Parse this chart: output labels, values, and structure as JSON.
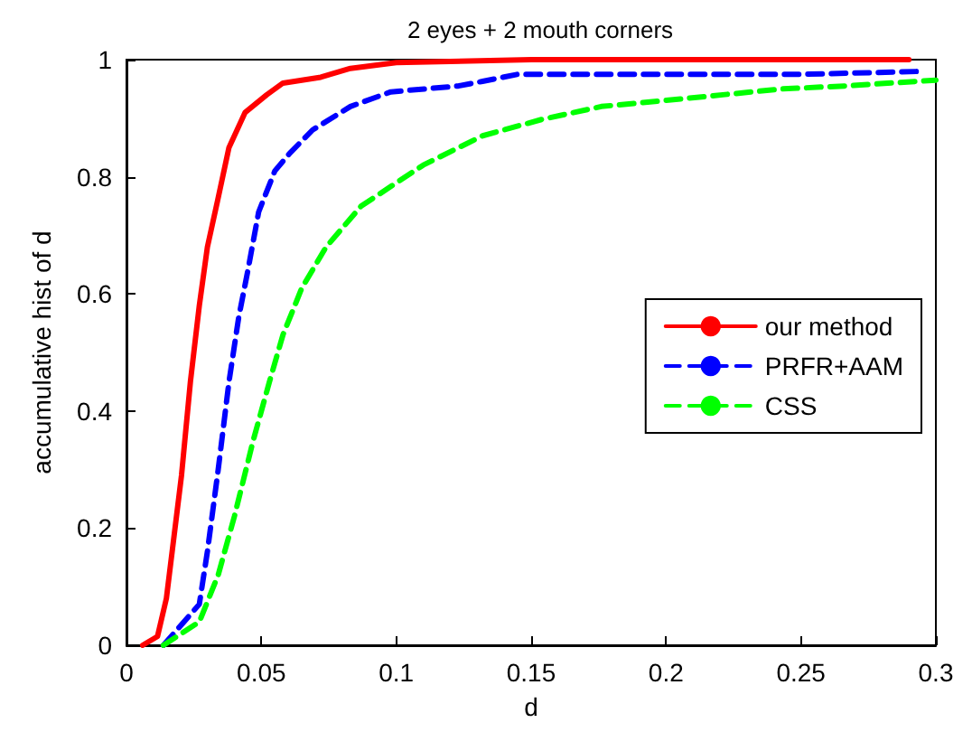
{
  "chart_data": {
    "type": "line",
    "title": "2 eyes + 2 mouth corners",
    "xlabel": "d",
    "ylabel": "accumulative hist of d",
    "xlim": [
      0,
      0.3
    ],
    "xticks": [
      0,
      0.05,
      0.1,
      0.15,
      0.2,
      0.25,
      0.3
    ],
    "ylim": [
      0,
      1
    ],
    "yticks": [
      0,
      0.2,
      0.4,
      0.6,
      0.8,
      1
    ],
    "grid": false,
    "legend": "right",
    "marker": "none",
    "series": [
      {
        "name": "our method",
        "color": "#ff0000",
        "line_style": "solid",
        "x": [
          0.006,
          0.0115,
          0.0148,
          0.0204,
          0.0237,
          0.027,
          0.03,
          0.0338,
          0.038,
          0.044,
          0.052,
          0.058,
          0.072,
          0.083,
          0.1,
          0.15,
          0.2,
          0.25,
          0.29
        ],
        "values": [
          0,
          0.015,
          0.08,
          0.29,
          0.45,
          0.58,
          0.68,
          0.76,
          0.85,
          0.91,
          0.94,
          0.96,
          0.97,
          0.985,
          0.995,
          1,
          1,
          1,
          1
        ]
      },
      {
        "name": "PRFR+AAM",
        "color": "#0000ff",
        "line_style": "dashed",
        "x": [
          0.0137,
          0.027,
          0.03,
          0.034,
          0.038,
          0.0416,
          0.045,
          0.049,
          0.055,
          0.0605,
          0.069,
          0.083,
          0.098,
          0.123,
          0.132,
          0.145,
          0.2,
          0.25,
          0.295
        ],
        "values": [
          0,
          0.07,
          0.16,
          0.3,
          0.45,
          0.56,
          0.64,
          0.74,
          0.81,
          0.84,
          0.88,
          0.92,
          0.945,
          0.955,
          0.963,
          0.975,
          0.975,
          0.975,
          0.98
        ]
      },
      {
        "name": "CSS",
        "color": "#00ff00",
        "line_style": "dashed",
        "x": [
          0.0137,
          0.027,
          0.034,
          0.04,
          0.047,
          0.053,
          0.058,
          0.065,
          0.074,
          0.087,
          0.11,
          0.132,
          0.154,
          0.176,
          0.199,
          0.221,
          0.243,
          0.266,
          0.3
        ],
        "values": [
          0,
          0.04,
          0.12,
          0.22,
          0.35,
          0.45,
          0.53,
          0.61,
          0.68,
          0.75,
          0.82,
          0.87,
          0.898,
          0.92,
          0.93,
          0.94,
          0.95,
          0.955,
          0.965
        ]
      }
    ]
  }
}
